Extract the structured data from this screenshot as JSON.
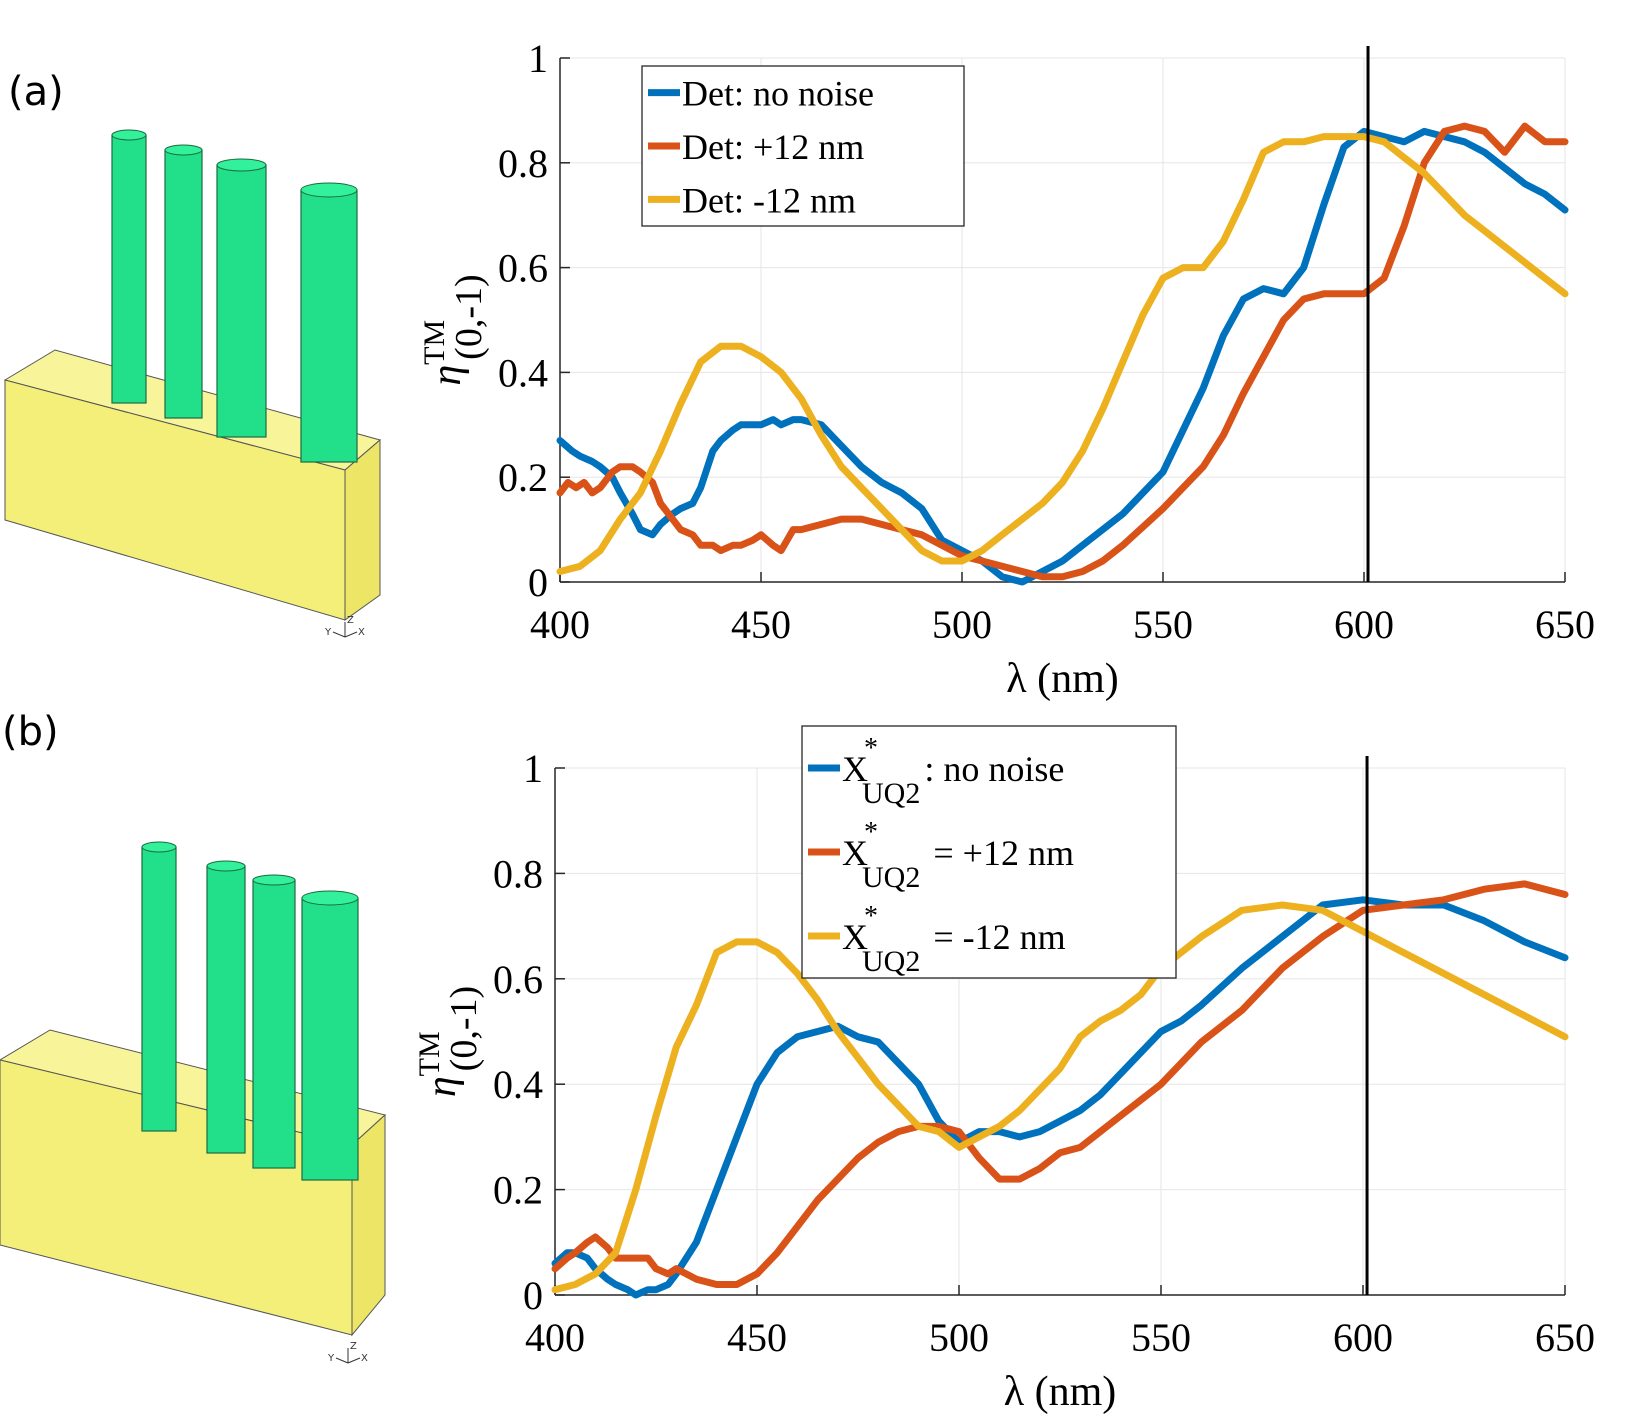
{
  "panels": [
    {
      "label": "(a)"
    },
    {
      "label": "(b)"
    }
  ],
  "axis_triad": {
    "y": "Y",
    "z": "Z",
    "x": "X"
  },
  "colors": {
    "blue": "#0072BD",
    "orange": "#D95319",
    "yellow": "#EDB120",
    "green": "#22e08a",
    "substrate": "#f4ef78",
    "vline": "#000000"
  },
  "chart_data": [
    {
      "type": "line",
      "title": "",
      "xlabel": "λ (nm)",
      "ylabel": {
        "base": "η",
        "sup": "TM",
        "sub": "(0,-1)"
      },
      "xlim": [
        400,
        650
      ],
      "ylim": [
        0,
        1
      ],
      "xticks": [
        400,
        450,
        500,
        550,
        600,
        650
      ],
      "yticks": [
        0,
        0.2,
        0.4,
        0.6,
        0.8,
        1
      ],
      "ytick_labels": [
        "0",
        "0.2",
        "0.4",
        "0.6",
        "0.8",
        "1"
      ],
      "grid": true,
      "legend_position": "top-left",
      "vline_x": 601,
      "series": [
        {
          "name": "Det: no noise",
          "color": "#0072BD",
          "x": [
            400,
            403,
            405,
            408,
            410,
            413,
            415,
            418,
            420,
            423,
            425,
            428,
            430,
            433,
            435,
            438,
            440,
            443,
            445,
            448,
            450,
            453,
            455,
            458,
            460,
            465,
            470,
            475,
            480,
            485,
            490,
            495,
            500,
            505,
            510,
            515,
            520,
            525,
            530,
            540,
            550,
            560,
            565,
            570,
            575,
            580,
            585,
            590,
            595,
            600,
            605,
            610,
            615,
            620,
            625,
            630,
            635,
            640,
            645,
            650
          ],
          "y": [
            0.27,
            0.25,
            0.24,
            0.23,
            0.22,
            0.2,
            0.17,
            0.13,
            0.1,
            0.09,
            0.11,
            0.13,
            0.14,
            0.15,
            0.18,
            0.25,
            0.27,
            0.29,
            0.3,
            0.3,
            0.3,
            0.31,
            0.3,
            0.31,
            0.31,
            0.3,
            0.26,
            0.22,
            0.19,
            0.17,
            0.14,
            0.08,
            0.06,
            0.04,
            0.01,
            0.0,
            0.02,
            0.04,
            0.07,
            0.13,
            0.21,
            0.37,
            0.47,
            0.54,
            0.56,
            0.55,
            0.6,
            0.72,
            0.83,
            0.86,
            0.85,
            0.84,
            0.86,
            0.85,
            0.84,
            0.82,
            0.79,
            0.76,
            0.74,
            0.71
          ]
        },
        {
          "name": "Det: +12 nm",
          "color": "#D95319",
          "x": [
            400,
            402,
            404,
            406,
            408,
            410,
            413,
            415,
            418,
            420,
            423,
            425,
            428,
            430,
            433,
            435,
            438,
            440,
            443,
            445,
            448,
            450,
            453,
            455,
            458,
            460,
            465,
            470,
            475,
            480,
            485,
            490,
            495,
            500,
            505,
            510,
            515,
            520,
            525,
            530,
            535,
            540,
            550,
            560,
            565,
            570,
            575,
            580,
            585,
            590,
            595,
            600,
            605,
            610,
            615,
            620,
            625,
            630,
            635,
            640,
            645,
            650
          ],
          "y": [
            0.17,
            0.19,
            0.18,
            0.19,
            0.17,
            0.18,
            0.21,
            0.22,
            0.22,
            0.21,
            0.19,
            0.15,
            0.12,
            0.1,
            0.09,
            0.07,
            0.07,
            0.06,
            0.07,
            0.07,
            0.08,
            0.09,
            0.07,
            0.06,
            0.1,
            0.1,
            0.11,
            0.12,
            0.12,
            0.11,
            0.1,
            0.09,
            0.07,
            0.05,
            0.04,
            0.03,
            0.02,
            0.01,
            0.01,
            0.02,
            0.04,
            0.07,
            0.14,
            0.22,
            0.28,
            0.36,
            0.43,
            0.5,
            0.54,
            0.55,
            0.55,
            0.55,
            0.58,
            0.68,
            0.8,
            0.86,
            0.87,
            0.86,
            0.82,
            0.87,
            0.84,
            0.84
          ]
        },
        {
          "name": "Det: -12 nm",
          "color": "#EDB120",
          "x": [
            400,
            405,
            410,
            415,
            420,
            425,
            430,
            435,
            440,
            445,
            450,
            455,
            460,
            465,
            470,
            475,
            480,
            485,
            490,
            495,
            500,
            505,
            510,
            515,
            520,
            525,
            530,
            535,
            540,
            545,
            550,
            555,
            560,
            565,
            570,
            575,
            580,
            585,
            590,
            595,
            600,
            605,
            610,
            615,
            620,
            625,
            630,
            635,
            640,
            645,
            650
          ],
          "y": [
            0.02,
            0.03,
            0.06,
            0.12,
            0.17,
            0.25,
            0.34,
            0.42,
            0.45,
            0.45,
            0.43,
            0.4,
            0.35,
            0.28,
            0.22,
            0.18,
            0.14,
            0.1,
            0.06,
            0.04,
            0.04,
            0.06,
            0.09,
            0.12,
            0.15,
            0.19,
            0.25,
            0.33,
            0.42,
            0.51,
            0.58,
            0.6,
            0.6,
            0.65,
            0.73,
            0.82,
            0.84,
            0.84,
            0.85,
            0.85,
            0.85,
            0.84,
            0.81,
            0.78,
            0.74,
            0.7,
            0.67,
            0.64,
            0.61,
            0.58,
            0.55
          ]
        }
      ],
      "legend": [
        {
          "label": "Det: no noise"
        },
        {
          "label": "Det: +12 nm"
        },
        {
          "label": "Det: -12 nm"
        }
      ]
    },
    {
      "type": "line",
      "title": "",
      "xlabel": "λ (nm)",
      "ylabel": {
        "base": "η",
        "sup": "TM",
        "sub": "(0,-1)"
      },
      "xlim": [
        400,
        650
      ],
      "ylim": [
        0,
        1
      ],
      "xticks": [
        400,
        450,
        500,
        550,
        600,
        650
      ],
      "yticks": [
        0,
        0.2,
        0.4,
        0.6,
        0.8,
        1
      ],
      "ytick_labels": [
        "0",
        "0.2",
        "0.4",
        "0.6",
        "0.8",
        "1"
      ],
      "grid": true,
      "legend_position": "top-center",
      "vline_x": 601,
      "series": [
        {
          "name": "X*UQ2 : no noise",
          "color": "#0072BD",
          "x": [
            400,
            403,
            405,
            408,
            410,
            413,
            415,
            418,
            420,
            423,
            425,
            428,
            430,
            435,
            440,
            445,
            450,
            455,
            460,
            465,
            470,
            475,
            480,
            485,
            490,
            495,
            500,
            505,
            510,
            515,
            520,
            525,
            530,
            535,
            540,
            545,
            550,
            555,
            560,
            570,
            580,
            590,
            600,
            610,
            620,
            630,
            640,
            650
          ],
          "y": [
            0.06,
            0.08,
            0.08,
            0.07,
            0.05,
            0.03,
            0.02,
            0.01,
            0.0,
            0.01,
            0.01,
            0.02,
            0.04,
            0.1,
            0.2,
            0.3,
            0.4,
            0.46,
            0.49,
            0.5,
            0.51,
            0.49,
            0.48,
            0.44,
            0.4,
            0.33,
            0.29,
            0.31,
            0.31,
            0.3,
            0.31,
            0.33,
            0.35,
            0.38,
            0.42,
            0.46,
            0.5,
            0.52,
            0.55,
            0.62,
            0.68,
            0.74,
            0.75,
            0.74,
            0.74,
            0.71,
            0.67,
            0.64
          ]
        },
        {
          "name": "X*UQ2 = +12 nm",
          "color": "#D95319",
          "x": [
            400,
            403,
            405,
            408,
            410,
            413,
            415,
            418,
            420,
            423,
            425,
            428,
            430,
            435,
            440,
            445,
            450,
            455,
            460,
            465,
            470,
            475,
            480,
            485,
            490,
            495,
            500,
            505,
            510,
            515,
            520,
            525,
            530,
            540,
            550,
            560,
            570,
            580,
            590,
            600,
            610,
            620,
            630,
            640,
            650
          ],
          "y": [
            0.05,
            0.07,
            0.08,
            0.1,
            0.11,
            0.09,
            0.07,
            0.07,
            0.07,
            0.07,
            0.05,
            0.04,
            0.05,
            0.03,
            0.02,
            0.02,
            0.04,
            0.08,
            0.13,
            0.18,
            0.22,
            0.26,
            0.29,
            0.31,
            0.32,
            0.32,
            0.31,
            0.26,
            0.22,
            0.22,
            0.24,
            0.27,
            0.28,
            0.34,
            0.4,
            0.48,
            0.54,
            0.62,
            0.68,
            0.73,
            0.74,
            0.75,
            0.77,
            0.78,
            0.76
          ]
        },
        {
          "name": "X*UQ2 = -12 nm",
          "color": "#EDB120",
          "x": [
            400,
            405,
            410,
            415,
            420,
            425,
            430,
            435,
            440,
            445,
            450,
            455,
            460,
            465,
            470,
            475,
            480,
            485,
            490,
            495,
            500,
            505,
            510,
            515,
            520,
            525,
            530,
            535,
            540,
            545,
            550,
            560,
            570,
            580,
            590,
            600,
            610,
            620,
            630,
            640,
            650
          ],
          "y": [
            0.01,
            0.02,
            0.04,
            0.08,
            0.2,
            0.34,
            0.47,
            0.55,
            0.65,
            0.67,
            0.67,
            0.65,
            0.61,
            0.56,
            0.5,
            0.45,
            0.4,
            0.36,
            0.32,
            0.31,
            0.28,
            0.3,
            0.32,
            0.35,
            0.39,
            0.43,
            0.49,
            0.52,
            0.54,
            0.57,
            0.62,
            0.68,
            0.73,
            0.74,
            0.73,
            0.69,
            0.65,
            0.61,
            0.57,
            0.53,
            0.49
          ]
        }
      ],
      "legend": [
        {
          "main": "X",
          "sup": "*",
          "sub": "UQ2",
          "rest": ": no noise"
        },
        {
          "main": "X",
          "sup": "*",
          "sub": "UQ2",
          "rest": " = +12 nm"
        },
        {
          "main": "X",
          "sup": "*",
          "sub": "UQ2",
          "rest": " = -12 nm"
        }
      ]
    }
  ]
}
